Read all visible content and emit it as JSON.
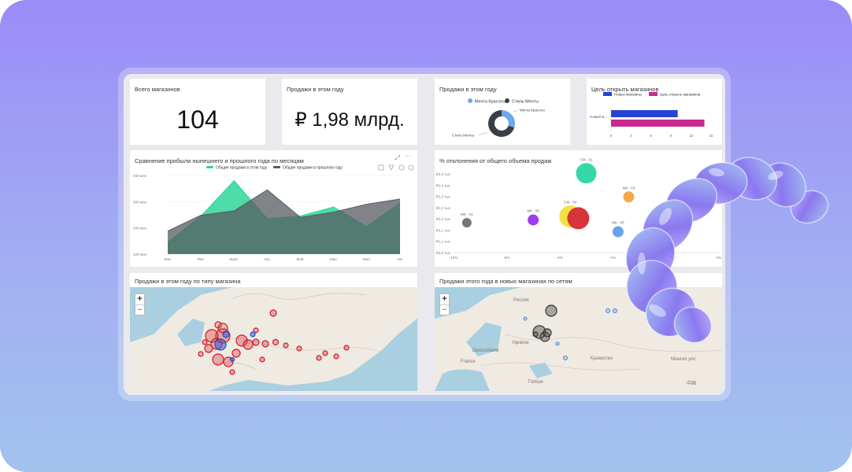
{
  "kpi_total_stores": {
    "title": "Всего магазинов",
    "value": "104"
  },
  "kpi_sales_year": {
    "title": "Продажи в этом году",
    "value": "₽ 1,98 млрд."
  },
  "donut": {
    "title": "Продажи в этом году",
    "legend": [
      {
        "label": "Мечта Красоты",
        "color": "#6ea8e8"
      },
      {
        "label": "Стиль Мечты",
        "color": "#3a3f47"
      }
    ],
    "callout_top": "Мечта Красоты",
    "callout_bottom": "Стиль Мечты",
    "chart_data": {
      "type": "pie",
      "labels": [
        "Мечта Красоты",
        "Стиль Мечты"
      ],
      "values": [
        30,
        70
      ]
    }
  },
  "goal": {
    "title": "Цель открыть магазинов",
    "legend": [
      {
        "label": "Новые магазины",
        "color": "#2643d6"
      },
      {
        "label": "Цель открыть магазинов",
        "color": "#c8288f"
      }
    ],
    "ylabel": "Новый м...",
    "chart_data": {
      "type": "bar",
      "categories": [
        "Новый м..."
      ],
      "series": [
        {
          "name": "Новые магазины",
          "values": [
            10
          ]
        },
        {
          "name": "Цель открыть магазинов",
          "values": [
            14
          ]
        }
      ],
      "ticks": [
        "0",
        "3",
        "6",
        "9",
        "12",
        "15"
      ],
      "xlim": [
        0,
        15
      ]
    }
  },
  "profit": {
    "title": "Сравнение прибыли нынешнего и прошлого года по месяцам",
    "legend": [
      {
        "label": "Общие продажи в этом году",
        "color": "#2fd69a"
      },
      {
        "label": "Общие продажи в прошлом году",
        "color": "#555b60"
      }
    ],
    "chart_data": {
      "type": "area",
      "categories": [
        "Янв.",
        "Фев.",
        "Март.",
        "Апр.",
        "Май.",
        "Июн.",
        "Июл.",
        "Авг."
      ],
      "series": [
        {
          "name": "Общие продажи в этом году",
          "values": [
            145,
            245,
            380,
            235,
            245,
            280,
            205,
            295
          ]
        },
        {
          "name": "Общие продажи в прошлом году",
          "values": [
            188,
            248,
            265,
            345,
            240,
            260,
            290,
            310
          ]
        }
      ],
      "yticks": [
        "400 млн",
        "300 млн",
        "200 млн",
        "100 млн"
      ],
      "ylim": [
        100,
        400
      ]
    }
  },
  "deviation": {
    "title": "% отклонения от общего объема продаж",
    "chart_data": {
      "type": "scatter",
      "yticks": [
        "₽1,4 тыс",
        "₽1,4 тыс",
        "₽1,3 тыс",
        "₽1,2 тыс",
        "₽1,2 тыс",
        "₽1,1 тыс",
        "₽1,1 тыс",
        "₽1,0 тыс"
      ],
      "xticks": [
        "-10%",
        "-8%",
        "-6%",
        "-4%",
        "-2%",
        "0%"
      ],
      "xlim": [
        -10,
        0
      ],
      "points": [
        {
          "label": "СМ - 01",
          "x": -5.0,
          "y": 7.05,
          "size": 13,
          "color": "#37d8a8"
        },
        {
          "label": "МК - 03",
          "x": -3.4,
          "y": 4.95,
          "size": 7,
          "color": "#f5a74a"
        },
        {
          "label": "МК - 01",
          "x": -9.5,
          "y": 2.65,
          "size": 6,
          "color": "#777777"
        },
        {
          "label": "МК - 04",
          "x": -7.0,
          "y": 2.9,
          "size": 7,
          "color": "#9b3ef0"
        },
        {
          "label": "СМ - 04",
          "x": -5.6,
          "y": 3.2,
          "size": 14,
          "color": "#f4e042"
        },
        {
          "label": "",
          "x": -5.3,
          "y": 3.05,
          "size": 14,
          "color": "#d8353a"
        },
        {
          "label": "МК - 05",
          "x": -3.8,
          "y": 1.85,
          "size": 7,
          "color": "#6aa1ec"
        }
      ]
    }
  },
  "map_type": {
    "title": "Продажи в этом году по типу магазина",
    "zoom_in": "+",
    "zoom_out": "−"
  },
  "map_networks": {
    "title": "Продажи этого года в новых магазинах по сетям",
    "zoom_in": "+",
    "zoom_out": "−",
    "labels": [
      {
        "text": "Россия"
      },
      {
        "text": "Deutschland"
      },
      {
        "text": "Україна"
      },
      {
        "text": "France"
      },
      {
        "text": "Қазақстан"
      },
      {
        "text": "Türkiye"
      },
      {
        "text": "Монгол улс"
      },
      {
        "text": "中国"
      }
    ]
  }
}
